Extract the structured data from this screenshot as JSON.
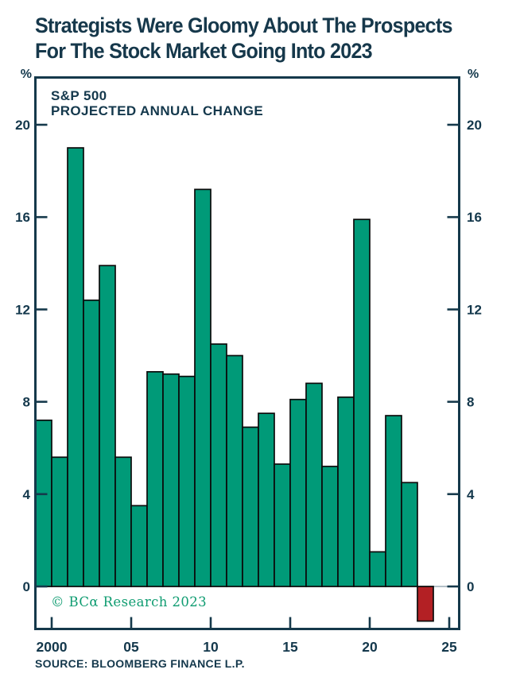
{
  "title": {
    "line1": "Strategists Were Gloomy About The Prospects",
    "line2": "For The Stock Market Going Into 2023"
  },
  "chart_data": {
    "type": "bar",
    "title": "S&P 500",
    "subtitle": "PROJECTED ANNUAL CHANGE",
    "unit": "%",
    "categories": [
      1999,
      2000,
      2001,
      2002,
      2003,
      2004,
      2005,
      2006,
      2007,
      2008,
      2009,
      2010,
      2011,
      2012,
      2013,
      2014,
      2015,
      2016,
      2017,
      2018,
      2019,
      2020,
      2021,
      2022,
      2023
    ],
    "values": [
      7.2,
      5.6,
      19.0,
      12.4,
      13.9,
      5.6,
      3.5,
      9.3,
      9.2,
      9.1,
      17.2,
      10.5,
      10.0,
      6.9,
      7.5,
      5.3,
      8.1,
      8.8,
      5.2,
      8.2,
      15.9,
      1.5,
      7.4,
      4.5,
      -1.5
    ],
    "yticks": [
      0,
      4,
      8,
      12,
      16,
      20
    ],
    "ylim": [
      -1.9,
      22.1
    ],
    "xlim": [
      1999,
      2025.6
    ],
    "x_axis": {
      "tick_years": [
        2000,
        2005,
        2010,
        2015,
        2020,
        2025
      ],
      "tick_labels": [
        "2000",
        "05",
        "10",
        "15",
        "20",
        "25"
      ]
    },
    "grid": "off",
    "legend": "none",
    "colors": {
      "positive": "#009A78",
      "negative": "#B32024",
      "outline": "#0B0B0B",
      "axis": "#15394B",
      "zero_line": "#B3C0C7",
      "text": "#14384C",
      "watermark": "#0F9C71"
    }
  },
  "watermark": "© BCα Research 2023",
  "source": "SOURCE: BLOOMBERG FINANCE L.P."
}
